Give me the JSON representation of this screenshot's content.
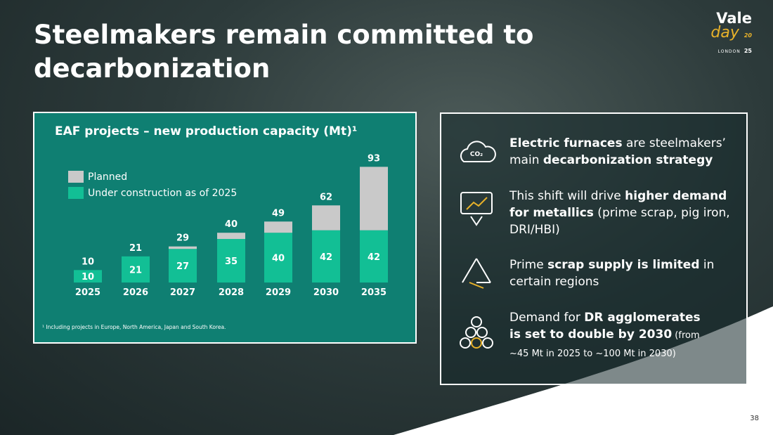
{
  "slide_title_lines": [
    "Steelmakers remain committed to",
    "decarbonization"
  ],
  "logo": {
    "name": "Vale",
    "event": "day",
    "city": "LONDON",
    "year_top": "20",
    "year_bottom": "25"
  },
  "page_number": "38",
  "chart_data": {
    "type": "stacked_bar",
    "title": "EAF projects – new production capacity (Mt)¹",
    "categories": [
      "2025",
      "2026",
      "2027",
      "2028",
      "2029",
      "2030",
      "2035"
    ],
    "series": [
      {
        "name": "Under construction as of 2025",
        "color": "#12bf95",
        "values": [
          10,
          21,
          27,
          35,
          40,
          42,
          42
        ]
      },
      {
        "name": "Planned",
        "color": "#c9c9c9",
        "values": [
          0,
          0,
          2,
          5,
          9,
          20,
          51
        ]
      }
    ],
    "total_labels": [
      10,
      21,
      29,
      40,
      49,
      62,
      93
    ],
    "ylim": [
      0,
      100
    ],
    "footnote": "¹ Including projects in Europe, North America, Japan and South Korea."
  },
  "icon_text": "CO₂",
  "items": [
    {
      "lines": [
        [
          {
            "text": "Electric furnaces",
            "bold": true
          },
          {
            "text": " are steelmakers’",
            "bold": false
          }
        ],
        [
          {
            "text": "main ",
            "bold": false
          },
          {
            "text": "decarbonization strategy",
            "bold": true
          }
        ]
      ]
    },
    {
      "lines": [
        [
          {
            "text": "This shift will drive ",
            "bold": false
          },
          {
            "text": "higher demand",
            "bold": true
          }
        ],
        [
          {
            "text": "for metallics",
            "bold": true
          },
          {
            "text": " (prime scrap, pig iron,",
            "bold": false
          }
        ],
        [
          {
            "text": "DRI/HBI)",
            "bold": false
          }
        ]
      ]
    },
    {
      "lines": [
        [
          {
            "text": "Prime ",
            "bold": false
          },
          {
            "text": "scrap supply is limited",
            "bold": true
          },
          {
            "text": " in",
            "bold": false
          }
        ],
        [
          {
            "text": "certain regions",
            "bold": false
          }
        ]
      ]
    },
    {
      "lines": [
        [
          {
            "text": "Demand for ",
            "bold": false
          },
          {
            "text": "DR agglomerates",
            "bold": true
          }
        ],
        [
          {
            "text": "is set to double by 2030",
            "bold": true
          },
          {
            "text": " (from",
            "bold": false
          }
        ],
        [
          {
            "text": "~45 Mt in 2025 to ~100 Mt in 2030)",
            "bold": false
          }
        ]
      ]
    }
  ]
}
